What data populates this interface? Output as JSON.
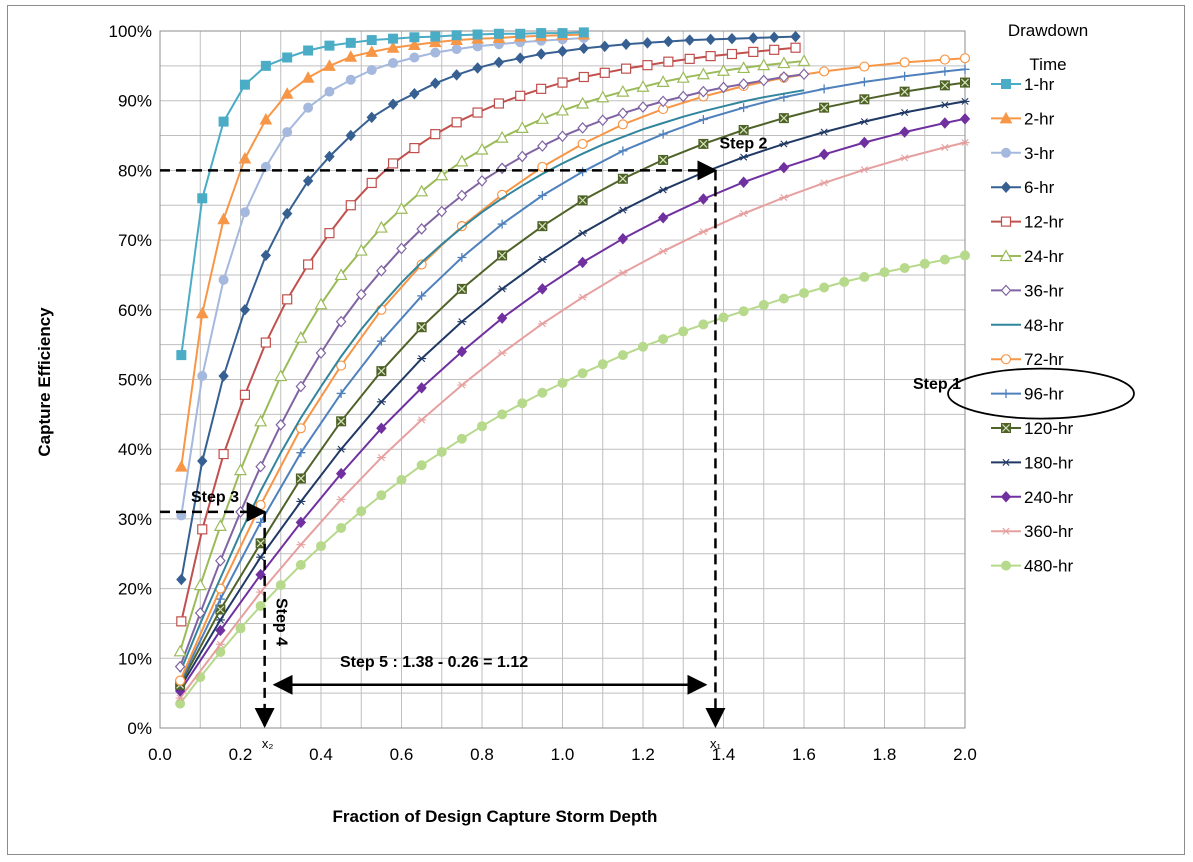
{
  "chart_data": {
    "type": "line",
    "xlabel": "Fraction of Design Capture Storm Depth",
    "ylabel": "Capture Efficiency",
    "xlim": [
      0,
      2.0
    ],
    "ylim": [
      0,
      100
    ],
    "x_ticks": [
      "0.0",
      "0.2",
      "0.4",
      "0.6",
      "0.8",
      "1.0",
      "1.2",
      "1.4",
      "1.6",
      "1.8",
      "2.0"
    ],
    "y_ticks": [
      "0%",
      "10%",
      "20%",
      "30%",
      "40%",
      "50%",
      "60%",
      "70%",
      "80%",
      "90%",
      "100%"
    ],
    "grid": "both",
    "legend": {
      "position": "right",
      "title": "Drawdown Time",
      "highlighted": "96-hr"
    },
    "series": [
      {
        "name": "1-hr",
        "color": "#4bacc6",
        "marker": "square-filled",
        "x": [
          0.053,
          0.105,
          0.158,
          0.211,
          0.263,
          0.316,
          0.368,
          0.421,
          0.474,
          0.526,
          0.579,
          0.632,
          0.684,
          0.737,
          0.789,
          0.842,
          0.895,
          0.947,
          1.0,
          1.053
        ],
        "y": [
          53.5,
          76,
          87,
          92.3,
          95,
          96.2,
          97.2,
          97.9,
          98.3,
          98.7,
          98.9,
          99.1,
          99.2,
          99.4,
          99.5,
          99.6,
          99.6,
          99.7,
          99.7,
          99.8
        ]
      },
      {
        "name": "2-hr",
        "color": "#f79646",
        "marker": "triangle-filled",
        "x": [
          0.053,
          0.105,
          0.158,
          0.211,
          0.263,
          0.316,
          0.368,
          0.421,
          0.474,
          0.526,
          0.579,
          0.632,
          0.684,
          0.737,
          0.789,
          0.842,
          0.895,
          0.947,
          1.0,
          1.053
        ],
        "y": [
          37.5,
          59.5,
          73,
          81.7,
          87.3,
          91,
          93.3,
          95,
          96.3,
          97,
          97.6,
          98,
          98.4,
          98.7,
          98.9,
          99,
          99.2,
          99.3,
          99.4,
          99.5
        ]
      },
      {
        "name": "3-hr",
        "color": "#a5b8dd",
        "marker": "circle-filled",
        "x": [
          0.053,
          0.105,
          0.158,
          0.211,
          0.263,
          0.316,
          0.368,
          0.421,
          0.474,
          0.526,
          0.579,
          0.632,
          0.684,
          0.737,
          0.789,
          0.842,
          0.895,
          0.947,
          1.0,
          1.053
        ],
        "y": [
          30.5,
          50.5,
          64.3,
          74,
          80.5,
          85.5,
          89,
          91.3,
          93,
          94.4,
          95.4,
          96.2,
          96.9,
          97.4,
          97.8,
          98.1,
          98.4,
          98.6,
          98.8,
          99
        ]
      },
      {
        "name": "6-hr",
        "color": "#376092",
        "marker": "diamond-filled",
        "x": [
          0.053,
          0.105,
          0.158,
          0.211,
          0.263,
          0.316,
          0.368,
          0.421,
          0.474,
          0.526,
          0.579,
          0.632,
          0.684,
          0.737,
          0.789,
          0.842,
          0.895,
          0.947,
          1.0,
          1.053,
          1.105,
          1.158,
          1.211,
          1.263,
          1.316,
          1.368,
          1.421,
          1.474,
          1.526,
          1.579
        ],
        "y": [
          21.3,
          38.3,
          50.5,
          60,
          67.8,
          73.8,
          78.5,
          82,
          85,
          87.6,
          89.5,
          91,
          92.5,
          93.7,
          94.7,
          95.5,
          96.1,
          96.7,
          97.1,
          97.5,
          97.8,
          98.1,
          98.3,
          98.5,
          98.7,
          98.8,
          98.9,
          99,
          99.1,
          99.2
        ]
      },
      {
        "name": "12-hr",
        "color": "#c0504d",
        "marker": "square-open",
        "x": [
          0.053,
          0.105,
          0.158,
          0.211,
          0.263,
          0.316,
          0.368,
          0.421,
          0.474,
          0.526,
          0.579,
          0.632,
          0.684,
          0.737,
          0.789,
          0.842,
          0.895,
          0.947,
          1.0,
          1.053,
          1.105,
          1.158,
          1.211,
          1.263,
          1.316,
          1.368,
          1.421,
          1.474,
          1.526,
          1.579
        ],
        "y": [
          15.3,
          28.5,
          39.3,
          47.8,
          55.3,
          61.5,
          66.5,
          71,
          75,
          78.2,
          81,
          83.2,
          85.2,
          86.9,
          88.3,
          89.6,
          90.7,
          91.7,
          92.6,
          93.4,
          94,
          94.6,
          95.1,
          95.6,
          96,
          96.4,
          96.7,
          97,
          97.3,
          97.6
        ]
      },
      {
        "name": "24-hr",
        "color": "#9bbb59",
        "marker": "triangle-open",
        "x": [
          0.05,
          0.1,
          0.15,
          0.2,
          0.25,
          0.3,
          0.35,
          0.4,
          0.45,
          0.5,
          0.55,
          0.6,
          0.65,
          0.7,
          0.75,
          0.8,
          0.85,
          0.9,
          0.95,
          1.0,
          1.05,
          1.1,
          1.15,
          1.2,
          1.25,
          1.3,
          1.35,
          1.4,
          1.45,
          1.5,
          1.55,
          1.6
        ],
        "y": [
          11,
          20.5,
          29,
          37,
          44,
          50.5,
          56,
          60.8,
          65,
          68.5,
          71.8,
          74.5,
          77,
          79.3,
          81.3,
          83,
          84.7,
          86.1,
          87.4,
          88.6,
          89.6,
          90.5,
          91.3,
          92,
          92.7,
          93.3,
          93.8,
          94.3,
          94.7,
          95.1,
          95.4,
          95.7
        ]
      },
      {
        "name": "36-hr",
        "color": "#8064a2",
        "marker": "diamond-open",
        "x": [
          0.05,
          0.1,
          0.15,
          0.2,
          0.25,
          0.3,
          0.35,
          0.4,
          0.45,
          0.5,
          0.55,
          0.6,
          0.65,
          0.7,
          0.75,
          0.8,
          0.85,
          0.9,
          0.95,
          1.0,
          1.05,
          1.1,
          1.15,
          1.2,
          1.25,
          1.3,
          1.35,
          1.4,
          1.45,
          1.5,
          1.55,
          1.6
        ],
        "y": [
          8.8,
          16.5,
          24,
          31,
          37.5,
          43.5,
          49,
          53.8,
          58.3,
          62.2,
          65.6,
          68.8,
          71.6,
          74.1,
          76.4,
          78.5,
          80.3,
          82,
          83.5,
          84.9,
          86.1,
          87.2,
          88.2,
          89.1,
          89.9,
          90.6,
          91.3,
          91.9,
          92.4,
          92.9,
          93.4,
          93.8
        ]
      },
      {
        "name": "48-hr",
        "color": "#31859c",
        "marker": "none",
        "x": [
          0.05,
          0.1,
          0.15,
          0.2,
          0.25,
          0.3,
          0.35,
          0.4,
          0.45,
          0.5,
          0.55,
          0.6,
          0.65,
          0.7,
          0.75,
          0.8,
          0.85,
          0.9,
          0.95,
          1.0,
          1.05,
          1.1,
          1.15,
          1.2,
          1.25,
          1.3,
          1.35,
          1.4,
          1.45,
          1.5,
          1.55,
          1.6
        ],
        "y": [
          8,
          15,
          21.5,
          28,
          34,
          39.5,
          44.5,
          49,
          53.3,
          57.2,
          60.7,
          63.9,
          66.8,
          69.4,
          71.8,
          74,
          76,
          77.8,
          79.5,
          81,
          82.4,
          83.7,
          84.8,
          85.9,
          86.8,
          87.7,
          88.5,
          89.2,
          89.9,
          90.5,
          91,
          91.5
        ]
      },
      {
        "name": "72-hr",
        "color": "#f79646",
        "marker": "circle-open",
        "x": [
          0.05,
          0.15,
          0.25,
          0.35,
          0.45,
          0.55,
          0.65,
          0.75,
          0.85,
          0.95,
          1.05,
          1.15,
          1.25,
          1.35,
          1.45,
          1.55,
          1.65,
          1.75,
          1.85,
          1.95,
          2.0
        ],
        "y": [
          6.8,
          20,
          32,
          43,
          52,
          60,
          66.5,
          72,
          76.5,
          80.5,
          83.8,
          86.6,
          88.8,
          90.6,
          92.1,
          93.3,
          94.2,
          94.9,
          95.5,
          95.9,
          96.1
        ]
      },
      {
        "name": "96-hr",
        "color": "#4f81bd",
        "marker": "plus",
        "x": [
          0.05,
          0.15,
          0.25,
          0.35,
          0.45,
          0.55,
          0.65,
          0.75,
          0.85,
          0.95,
          1.05,
          1.15,
          1.25,
          1.35,
          1.45,
          1.55,
          1.65,
          1.75,
          1.85,
          1.95,
          2.0
        ],
        "y": [
          6.5,
          18.5,
          29.5,
          39.5,
          48,
          55.5,
          62,
          67.5,
          72.3,
          76.4,
          79.8,
          82.8,
          85.2,
          87.3,
          89,
          90.5,
          91.7,
          92.7,
          93.5,
          94.2,
          94.5
        ]
      },
      {
        "name": "120-hr",
        "color": "#4f6228",
        "marker": "square-x",
        "x": [
          0.05,
          0.15,
          0.25,
          0.35,
          0.45,
          0.55,
          0.65,
          0.75,
          0.85,
          0.95,
          1.05,
          1.15,
          1.25,
          1.35,
          1.45,
          1.55,
          1.65,
          1.75,
          1.85,
          1.95,
          2.0
        ],
        "y": [
          6.2,
          17,
          26.5,
          35.8,
          44,
          51.2,
          57.5,
          63,
          67.8,
          72,
          75.7,
          78.8,
          81.5,
          83.8,
          85.8,
          87.5,
          89,
          90.2,
          91.3,
          92.2,
          92.6
        ]
      },
      {
        "name": "180-hr",
        "color": "#1f3864",
        "marker": "star",
        "x": [
          0.05,
          0.15,
          0.25,
          0.35,
          0.45,
          0.55,
          0.65,
          0.75,
          0.85,
          0.95,
          1.05,
          1.15,
          1.25,
          1.35,
          1.45,
          1.55,
          1.65,
          1.75,
          1.85,
          1.95,
          2.0
        ],
        "y": [
          5.8,
          15.5,
          24.5,
          32.5,
          40,
          46.8,
          53,
          58.3,
          63,
          67.2,
          71,
          74.3,
          77.2,
          79.7,
          81.9,
          83.8,
          85.5,
          87,
          88.3,
          89.4,
          89.9
        ]
      },
      {
        "name": "240-hr",
        "color": "#7030a0",
        "marker": "diamond-filled",
        "x": [
          0.05,
          0.15,
          0.25,
          0.35,
          0.45,
          0.55,
          0.65,
          0.75,
          0.85,
          0.95,
          1.05,
          1.15,
          1.25,
          1.35,
          1.45,
          1.55,
          1.65,
          1.75,
          1.85,
          1.95,
          2.0
        ],
        "y": [
          5.3,
          14,
          22,
          29.5,
          36.5,
          43,
          48.8,
          54,
          58.8,
          63,
          66.8,
          70.2,
          73.2,
          75.9,
          78.3,
          80.4,
          82.3,
          84,
          85.5,
          86.8,
          87.4
        ]
      },
      {
        "name": "360-hr",
        "color": "#e6a0a0",
        "marker": "star",
        "x": [
          0.05,
          0.15,
          0.25,
          0.35,
          0.45,
          0.55,
          0.65,
          0.75,
          0.85,
          0.95,
          1.05,
          1.15,
          1.25,
          1.35,
          1.45,
          1.55,
          1.65,
          1.75,
          1.85,
          1.95,
          2.0
        ],
        "y": [
          4.3,
          12,
          19.5,
          26.3,
          32.8,
          38.8,
          44.2,
          49.2,
          53.8,
          58,
          61.8,
          65.3,
          68.4,
          71.2,
          73.8,
          76.1,
          78.2,
          80.1,
          81.8,
          83.3,
          84
        ]
      },
      {
        "name": "480-hr",
        "color": "#b7d98c",
        "marker": "circle-filled",
        "x": [
          0.05,
          0.1,
          0.15,
          0.2,
          0.25,
          0.3,
          0.35,
          0.4,
          0.45,
          0.5,
          0.55,
          0.6,
          0.65,
          0.7,
          0.75,
          0.8,
          0.85,
          0.9,
          0.95,
          1.0,
          1.05,
          1.1,
          1.15,
          1.2,
          1.25,
          1.3,
          1.35,
          1.4,
          1.45,
          1.5,
          1.55,
          1.6,
          1.65,
          1.7,
          1.75,
          1.8,
          1.85,
          1.9,
          1.95,
          2.0
        ],
        "y": [
          3.5,
          7.3,
          10.9,
          14.3,
          17.5,
          20.5,
          23.4,
          26.1,
          28.7,
          31.1,
          33.4,
          35.6,
          37.7,
          39.6,
          41.5,
          43.3,
          45,
          46.6,
          48.1,
          49.5,
          50.9,
          52.2,
          53.5,
          54.7,
          55.8,
          56.9,
          57.9,
          58.9,
          59.8,
          60.7,
          61.6,
          62.4,
          63.2,
          64,
          64.7,
          65.4,
          66,
          66.6,
          67.2,
          67.8
        ]
      }
    ],
    "annotations": [
      {
        "text": "Step 1",
        "kind": "label"
      },
      {
        "text": "Step 2",
        "kind": "label"
      },
      {
        "text": "Step 3",
        "kind": "label"
      },
      {
        "text": "Step 4",
        "kind": "label-vertical"
      },
      {
        "text": "Step 5 : 1.38 - 0.26 = 1.12",
        "kind": "label"
      },
      {
        "text": "x₁",
        "x": 1.38,
        "kind": "axis-marker"
      },
      {
        "text": "x₂",
        "x": 0.26,
        "kind": "axis-marker"
      }
    ],
    "guides": {
      "step2_y": 80,
      "step2_x": 1.38,
      "step3_y": 31,
      "step3_x": 0.26
    }
  }
}
